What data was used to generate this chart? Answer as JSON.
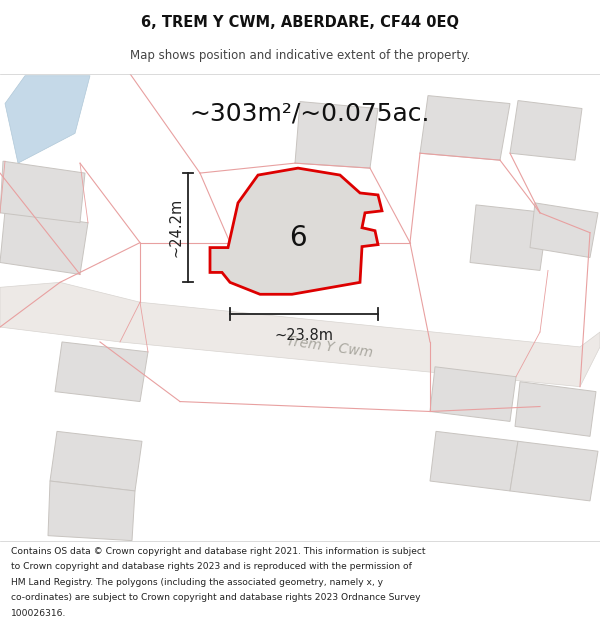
{
  "title": "6, TREM Y CWM, ABERDARE, CF44 0EQ",
  "subtitle": "Map shows position and indicative extent of the property.",
  "area_text": "~303m²/~0.075ac.",
  "width_label": "~23.8m",
  "height_label": "~24.2m",
  "property_number": "6",
  "street_name": "Trem Y Cwm",
  "footer_lines": [
    "Contains OS data © Crown copyright and database right 2021. This information is subject",
    "to Crown copyright and database rights 2023 and is reproduced with the permission of",
    "HM Land Registry. The polygons (including the associated geometry, namely x, y",
    "co-ordinates) are subject to Crown copyright and database rights 2023 Ordnance Survey",
    "100026316."
  ],
  "map_bg": "#f7f6f4",
  "property_fill": "#dddbd8",
  "property_edge": "#dd0000",
  "building_fill": "#e0dedd",
  "building_edge": "#c8c4c0",
  "water_color": "#c5d9e8",
  "water_edge": "#b0c8d8",
  "pink_line_color": "#e8a0a0",
  "road_fill": "#ede9e6",
  "road_edge": "#d8d4d0",
  "dim_color": "#222222",
  "text_color": "#111111",
  "street_color": "#aaa8a0",
  "footer_color": "#222222",
  "title_color": "#111111",
  "subtitle_color": "#444444"
}
